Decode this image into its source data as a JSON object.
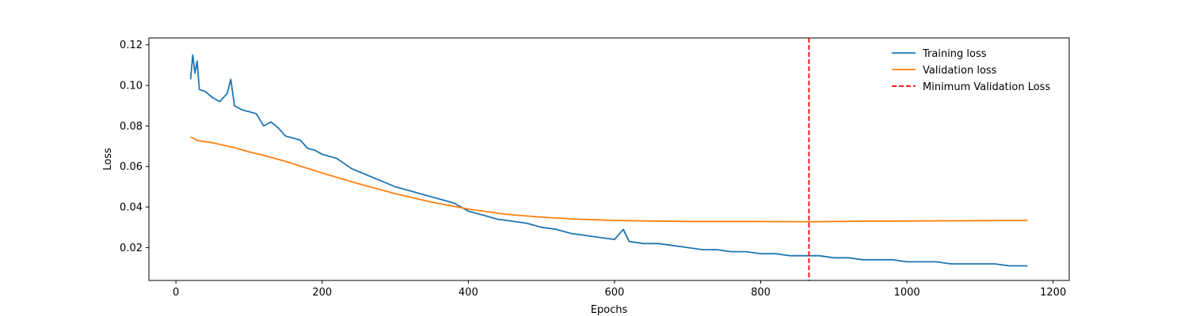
{
  "chart_data": {
    "type": "line",
    "title": "",
    "xlabel": "Epochs",
    "ylabel": "Loss",
    "xlim": [
      -37,
      1222
    ],
    "ylim": [
      0.0038,
      0.1234
    ],
    "xticks": [
      0,
      200,
      400,
      600,
      800,
      1000,
      1200
    ],
    "yticks": [
      0.02,
      0.04,
      0.06,
      0.08,
      0.1,
      0.12
    ],
    "ytick_labels": [
      "0.02",
      "0.04",
      "0.06",
      "0.08",
      "0.10",
      "0.12"
    ],
    "grid": false,
    "legend_position": "top-right",
    "series": [
      {
        "name": "Training loss",
        "color": "#1f77b4",
        "style": "solid",
        "x": [
          20,
          23,
          26,
          29,
          32,
          40,
          50,
          60,
          70,
          75,
          80,
          90,
          100,
          110,
          120,
          130,
          140,
          150,
          160,
          170,
          180,
          190,
          200,
          220,
          240,
          260,
          280,
          300,
          320,
          340,
          360,
          380,
          400,
          420,
          440,
          460,
          480,
          500,
          520,
          540,
          560,
          580,
          600,
          612,
          620,
          640,
          660,
          680,
          700,
          720,
          740,
          760,
          780,
          800,
          820,
          840,
          860,
          880,
          900,
          920,
          940,
          960,
          980,
          1000,
          1020,
          1040,
          1060,
          1080,
          1100,
          1120,
          1140,
          1165
        ],
        "y": [
          0.103,
          0.115,
          0.106,
          0.112,
          0.098,
          0.097,
          0.094,
          0.092,
          0.096,
          0.103,
          0.09,
          0.088,
          0.087,
          0.086,
          0.08,
          0.082,
          0.079,
          0.075,
          0.074,
          0.073,
          0.069,
          0.068,
          0.066,
          0.064,
          0.059,
          0.056,
          0.053,
          0.05,
          0.048,
          0.046,
          0.044,
          0.042,
          0.038,
          0.036,
          0.034,
          0.033,
          0.032,
          0.03,
          0.029,
          0.027,
          0.026,
          0.025,
          0.024,
          0.029,
          0.023,
          0.022,
          0.022,
          0.021,
          0.02,
          0.019,
          0.019,
          0.018,
          0.018,
          0.017,
          0.017,
          0.016,
          0.016,
          0.016,
          0.015,
          0.015,
          0.014,
          0.014,
          0.014,
          0.013,
          0.013,
          0.013,
          0.012,
          0.012,
          0.012,
          0.012,
          0.011,
          0.011
        ]
      },
      {
        "name": "Validation loss",
        "color": "#ff7f0e",
        "style": "solid",
        "x": [
          20,
          30,
          50,
          80,
          100,
          120,
          150,
          200,
          250,
          300,
          350,
          400,
          450,
          500,
          550,
          600,
          650,
          700,
          750,
          800,
          850,
          866,
          900,
          950,
          1000,
          1050,
          1100,
          1165
        ],
        "y": [
          0.0745,
          0.0728,
          0.0717,
          0.0693,
          0.0672,
          0.0655,
          0.0625,
          0.0568,
          0.0515,
          0.0466,
          0.0424,
          0.039,
          0.0365,
          0.035,
          0.034,
          0.0334,
          0.0331,
          0.0329,
          0.0329,
          0.0329,
          0.0328,
          0.0327,
          0.0329,
          0.033,
          0.0331,
          0.0332,
          0.0333,
          0.0334
        ]
      },
      {
        "name": "Minimum Validation Loss",
        "color": "#ff0000",
        "style": "dashed",
        "type": "vline",
        "x": 866
      }
    ]
  }
}
